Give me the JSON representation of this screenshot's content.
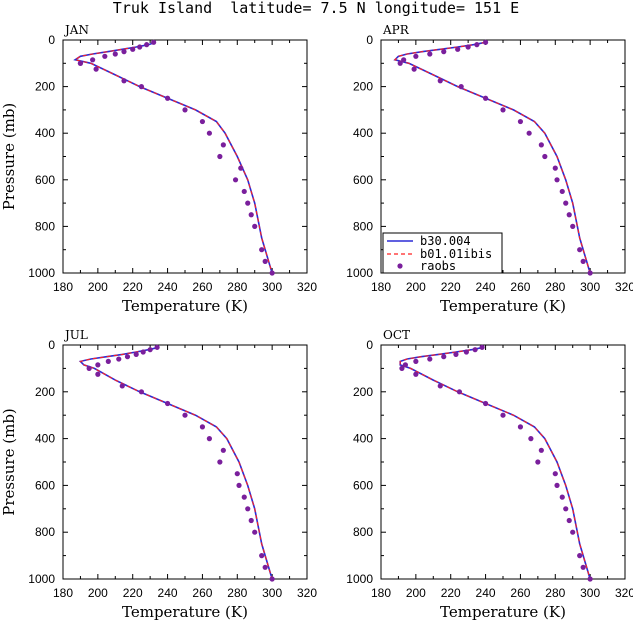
{
  "figure": {
    "title": "Truk Island  latitude= 7.5 N longitude= 151 E",
    "colors": {
      "b30": "#2b2bd6",
      "b01": "#ff2020",
      "raobs": "#7a1f9c"
    }
  },
  "legend": {
    "items": [
      "b30.004",
      "b01.01ibis",
      "raobs"
    ]
  },
  "chart_data": [
    {
      "type": "line",
      "label": "JAN",
      "xlabel": "Temperature (K)",
      "ylabel": "Pressure (mb)",
      "xlim": [
        180,
        320
      ],
      "ylim": [
        1000,
        0
      ],
      "xticks": [
        "180",
        "200",
        "220",
        "240",
        "260",
        "280",
        "300",
        "320"
      ],
      "yticks": [
        "0",
        "200",
        "400",
        "600",
        "800",
        "1000"
      ],
      "series": [
        {
          "name": "b30.004",
          "x": [
            233,
            229,
            222,
            214,
            206,
            197,
            190,
            187,
            196,
            210,
            224,
            240,
            256,
            268,
            273,
            280,
            286,
            290,
            294,
            300
          ],
          "y": [
            10,
            20,
            30,
            40,
            50,
            60,
            70,
            85,
            100,
            150,
            200,
            250,
            300,
            350,
            400,
            500,
            600,
            700,
            850,
            1000
          ]
        },
        {
          "name": "b01.01ibis",
          "x": [
            233,
            229,
            222,
            214,
            206,
            197,
            190,
            187,
            196,
            210,
            224,
            240,
            256,
            268,
            273,
            280,
            286,
            290,
            294,
            300
          ],
          "y": [
            10,
            20,
            30,
            40,
            50,
            60,
            70,
            85,
            100,
            150,
            200,
            250,
            300,
            350,
            400,
            500,
            600,
            700,
            850,
            1000
          ]
        },
        {
          "name": "raobs",
          "x": [
            232,
            228,
            224,
            220,
            215,
            210,
            204,
            197,
            190,
            190,
            199,
            215,
            225,
            240,
            250,
            260,
            264,
            272,
            270,
            282,
            279,
            284,
            286,
            288,
            290,
            294,
            296,
            300
          ],
          "y": [
            10,
            20,
            30,
            40,
            50,
            60,
            70,
            85,
            100,
            100,
            125,
            175,
            200,
            250,
            300,
            350,
            400,
            450,
            500,
            550,
            600,
            650,
            700,
            750,
            800,
            900,
            950,
            1000
          ]
        }
      ]
    },
    {
      "type": "line",
      "label": "APR",
      "xlabel": "Temperature (K)",
      "ylabel": "",
      "xlim": [
        180,
        320
      ],
      "ylim": [
        1000,
        0
      ],
      "xticks": [
        "180",
        "200",
        "220",
        "240",
        "260",
        "280",
        "300",
        "320"
      ],
      "yticks": [
        "0",
        "200",
        "400",
        "600",
        "800",
        "1000"
      ],
      "series": [
        {
          "name": "b30.004",
          "x": [
            240,
            233,
            224,
            214,
            204,
            195,
            190,
            188,
            196,
            210,
            224,
            240,
            256,
            268,
            274,
            281,
            286,
            290,
            294,
            300
          ],
          "y": [
            10,
            20,
            30,
            40,
            50,
            60,
            70,
            85,
            100,
            150,
            200,
            250,
            300,
            350,
            400,
            500,
            600,
            700,
            850,
            1000
          ]
        },
        {
          "name": "b01.01ibis",
          "x": [
            240,
            233,
            224,
            214,
            204,
            195,
            190,
            188,
            196,
            210,
            224,
            240,
            256,
            268,
            274,
            281,
            286,
            290,
            294,
            300
          ],
          "y": [
            10,
            20,
            30,
            40,
            50,
            60,
            70,
            85,
            100,
            150,
            200,
            250,
            300,
            350,
            400,
            500,
            600,
            700,
            850,
            1000
          ]
        },
        {
          "name": "raobs",
          "x": [
            240,
            235,
            230,
            224,
            216,
            208,
            200,
            193,
            191,
            199,
            214,
            226,
            240,
            250,
            260,
            265,
            272,
            274,
            280,
            281,
            284,
            286,
            288,
            290,
            294,
            296,
            300
          ],
          "y": [
            10,
            20,
            30,
            40,
            50,
            60,
            70,
            85,
            100,
            125,
            175,
            200,
            250,
            300,
            350,
            400,
            450,
            500,
            550,
            600,
            650,
            700,
            750,
            800,
            900,
            950,
            1000
          ]
        }
      ]
    },
    {
      "type": "line",
      "label": "JUL",
      "xlabel": "Temperature (K)",
      "ylabel": "Pressure (mb)",
      "xlim": [
        180,
        320
      ],
      "ylim": [
        1000,
        0
      ],
      "xticks": [
        "180",
        "200",
        "220",
        "240",
        "260",
        "280",
        "300",
        "320"
      ],
      "yticks": [
        "0",
        "200",
        "400",
        "600",
        "800",
        "1000"
      ],
      "series": [
        {
          "name": "b30.004",
          "x": [
            235,
            229,
            222,
            214,
            205,
            196,
            190,
            192,
            198,
            210,
            224,
            240,
            256,
            268,
            274,
            281,
            286,
            290,
            294,
            300
          ],
          "y": [
            10,
            20,
            30,
            40,
            50,
            60,
            70,
            85,
            100,
            150,
            200,
            250,
            300,
            350,
            400,
            500,
            600,
            700,
            850,
            1000
          ]
        },
        {
          "name": "b01.01ibis",
          "x": [
            235,
            229,
            222,
            214,
            205,
            196,
            190,
            192,
            198,
            210,
            224,
            240,
            256,
            268,
            274,
            281,
            286,
            290,
            294,
            300
          ],
          "y": [
            10,
            20,
            30,
            40,
            50,
            60,
            70,
            85,
            100,
            150,
            200,
            250,
            300,
            350,
            400,
            500,
            600,
            700,
            850,
            1000
          ]
        },
        {
          "name": "raobs",
          "x": [
            234,
            230,
            226,
            222,
            217,
            212,
            206,
            200,
            195,
            200,
            214,
            225,
            240,
            250,
            260,
            264,
            272,
            270,
            280,
            281,
            284,
            286,
            288,
            290,
            294,
            296,
            300
          ],
          "y": [
            10,
            20,
            30,
            40,
            50,
            60,
            70,
            85,
            100,
            125,
            175,
            200,
            250,
            300,
            350,
            400,
            450,
            500,
            550,
            600,
            650,
            700,
            750,
            800,
            900,
            950,
            1000
          ]
        }
      ]
    },
    {
      "type": "line",
      "label": "OCT",
      "xlabel": "Temperature (K)",
      "ylabel": "",
      "xlim": [
        180,
        320
      ],
      "ylim": [
        1000,
        0
      ],
      "xticks": [
        "180",
        "200",
        "220",
        "240",
        "260",
        "280",
        "300",
        "320"
      ],
      "yticks": [
        "0",
        "200",
        "400",
        "600",
        "800",
        "1000"
      ],
      "series": [
        {
          "name": "b30.004",
          "x": [
            239,
            232,
            223,
            213,
            203,
            195,
            191,
            191,
            197,
            210,
            224,
            240,
            256,
            268,
            274,
            281,
            286,
            290,
            294,
            300
          ],
          "y": [
            10,
            20,
            30,
            40,
            50,
            60,
            70,
            85,
            100,
            150,
            200,
            250,
            300,
            350,
            400,
            500,
            600,
            700,
            850,
            1000
          ]
        },
        {
          "name": "b01.01ibis",
          "x": [
            239,
            232,
            223,
            213,
            203,
            195,
            191,
            191,
            197,
            210,
            224,
            240,
            256,
            268,
            274,
            281,
            286,
            290,
            294,
            300
          ],
          "y": [
            10,
            20,
            30,
            40,
            50,
            60,
            70,
            85,
            100,
            150,
            200,
            250,
            300,
            350,
            400,
            500,
            600,
            700,
            850,
            1000
          ]
        },
        {
          "name": "raobs",
          "x": [
            238,
            234,
            229,
            223,
            216,
            208,
            200,
            194,
            192,
            200,
            214,
            225,
            240,
            250,
            260,
            266,
            272,
            270,
            280,
            281,
            284,
            286,
            288,
            290,
            294,
            296,
            300
          ],
          "y": [
            10,
            20,
            30,
            40,
            50,
            60,
            70,
            85,
            100,
            125,
            175,
            200,
            250,
            300,
            350,
            400,
            450,
            500,
            550,
            600,
            650,
            700,
            750,
            800,
            900,
            950,
            1000
          ]
        }
      ]
    }
  ]
}
